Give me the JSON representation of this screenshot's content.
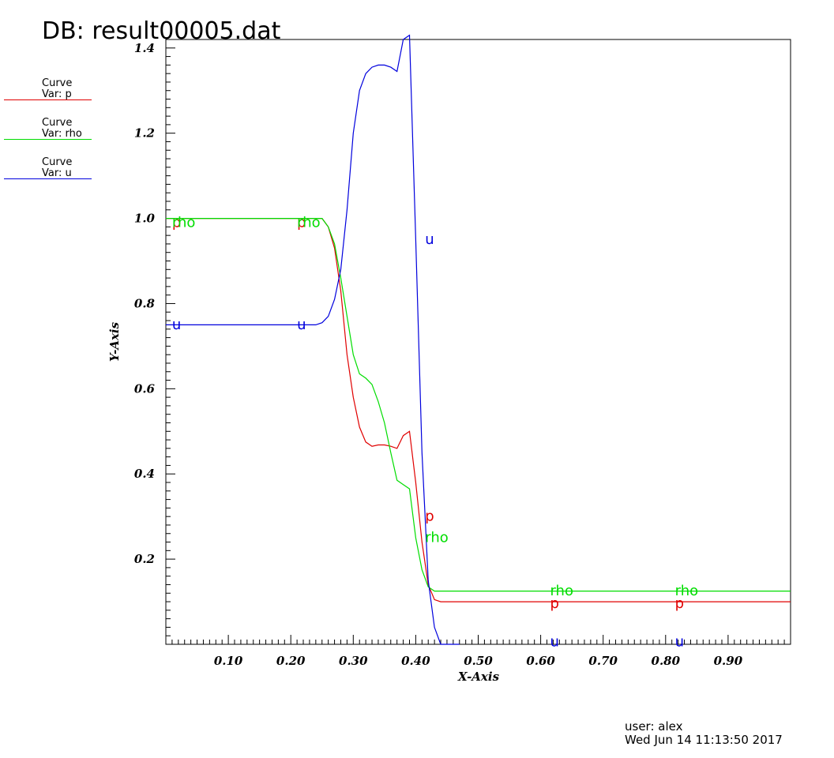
{
  "title": "DB: result00005.dat",
  "legend": [
    {
      "line1": "Curve",
      "line2": "Var: p",
      "color": "#e00000"
    },
    {
      "line1": "Curve",
      "line2": "Var: rho",
      "color": "#00dd00"
    },
    {
      "line1": "Curve",
      "line2": "Var: u",
      "color": "#0000dd"
    }
  ],
  "footer": {
    "user": "user: alex",
    "date": "Wed Jun 14 11:13:50 2017"
  },
  "chart_data": {
    "type": "line",
    "xlabel": "X-Axis",
    "ylabel": "Y-Axis",
    "xlim": [
      0.0,
      1.0
    ],
    "ylim": [
      0.0,
      1.42
    ],
    "x_ticks": [
      0.1,
      0.2,
      0.3,
      0.4,
      0.5,
      0.6,
      0.7,
      0.8,
      0.9
    ],
    "x_tick_labels": [
      "0.10",
      "0.20",
      "0.30",
      "0.40",
      "0.50",
      "0.60",
      "0.70",
      "0.80",
      "0.90"
    ],
    "y_ticks": [
      0.2,
      0.4,
      0.6,
      0.8,
      1.0,
      1.2,
      1.4
    ],
    "y_tick_labels": [
      "0.2",
      "0.4",
      "0.6",
      "0.8",
      "1.0",
      "1.2",
      "1.4"
    ],
    "grid": false,
    "series": [
      {
        "name": "p",
        "color": "#e00000",
        "x": [
          0.0,
          0.25,
          0.26,
          0.27,
          0.28,
          0.29,
          0.3,
          0.31,
          0.32,
          0.33,
          0.34,
          0.35,
          0.36,
          0.37,
          0.38,
          0.39,
          0.4,
          0.41,
          0.42,
          0.43,
          0.44,
          0.45,
          1.0
        ],
        "y": [
          1.0,
          1.0,
          0.98,
          0.93,
          0.83,
          0.68,
          0.58,
          0.51,
          0.475,
          0.465,
          0.468,
          0.468,
          0.465,
          0.46,
          0.49,
          0.5,
          0.38,
          0.24,
          0.14,
          0.105,
          0.1,
          0.1,
          0.1
        ],
        "labels": [
          {
            "text": "p",
            "x": 0.01,
            "y": 0.98
          },
          {
            "text": "p",
            "x": 0.21,
            "y": 0.98
          },
          {
            "text": "p",
            "x": 0.415,
            "y": 0.29
          },
          {
            "text": "p",
            "x": 0.615,
            "y": 0.085
          },
          {
            "text": "p",
            "x": 0.815,
            "y": 0.085
          }
        ]
      },
      {
        "name": "rho",
        "color": "#00dd00",
        "x": [
          0.0,
          0.25,
          0.26,
          0.27,
          0.28,
          0.29,
          0.3,
          0.31,
          0.32,
          0.33,
          0.34,
          0.35,
          0.36,
          0.37,
          0.38,
          0.39,
          0.4,
          0.41,
          0.42,
          0.43,
          0.44,
          0.45,
          1.0
        ],
        "y": [
          1.0,
          1.0,
          0.98,
          0.94,
          0.86,
          0.77,
          0.68,
          0.635,
          0.625,
          0.61,
          0.57,
          0.52,
          0.45,
          0.385,
          0.375,
          0.365,
          0.25,
          0.175,
          0.135,
          0.125,
          0.125,
          0.125,
          0.125
        ],
        "labels": [
          {
            "text": "rho",
            "x": 0.01,
            "y": 0.98
          },
          {
            "text": "rho",
            "x": 0.21,
            "y": 0.98
          },
          {
            "text": "rho",
            "x": 0.415,
            "y": 0.24
          },
          {
            "text": "rho",
            "x": 0.615,
            "y": 0.115
          },
          {
            "text": "rho",
            "x": 0.815,
            "y": 0.115
          }
        ]
      },
      {
        "name": "u",
        "color": "#0000dd",
        "x": [
          0.0,
          0.24,
          0.25,
          0.26,
          0.27,
          0.28,
          0.29,
          0.3,
          0.31,
          0.32,
          0.33,
          0.34,
          0.35,
          0.36,
          0.37,
          0.38,
          0.39,
          0.4,
          0.41,
          0.42,
          0.43,
          0.44,
          0.45,
          0.47
        ],
        "y": [
          0.75,
          0.75,
          0.755,
          0.77,
          0.81,
          0.88,
          1.02,
          1.2,
          1.3,
          1.34,
          1.355,
          1.36,
          1.36,
          1.355,
          1.345,
          1.42,
          1.43,
          0.95,
          0.45,
          0.15,
          0.04,
          0.0,
          0.0,
          0.0
        ],
        "labels": [
          {
            "text": "u",
            "x": 0.01,
            "y": 0.74
          },
          {
            "text": "u",
            "x": 0.21,
            "y": 0.74
          },
          {
            "text": "u",
            "x": 0.415,
            "y": 0.94
          },
          {
            "text": "u",
            "x": 0.615,
            "y": -0.005
          },
          {
            "text": "u",
            "x": 0.815,
            "y": -0.005
          }
        ]
      }
    ]
  }
}
